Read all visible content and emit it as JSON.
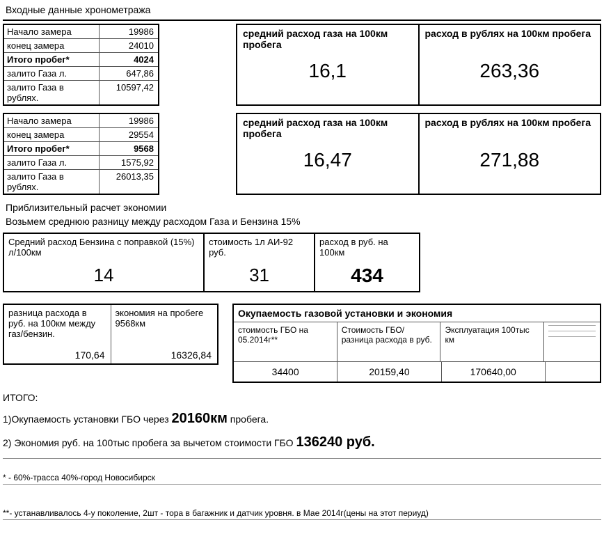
{
  "title": "Входные данные хронометража",
  "block1": {
    "rows": [
      {
        "label": "Начало замера",
        "val": "19986",
        "bold": false
      },
      {
        "label": "конец замера",
        "val": "24010",
        "bold": false
      },
      {
        "label": "Итого пробег*",
        "val": "4024",
        "bold": true
      },
      {
        "label": "залито Газа л.",
        "val": "647,86",
        "bold": false
      },
      {
        "label": "залито Газа в рублях.",
        "val": "10597,42",
        "bold": false
      }
    ]
  },
  "block2": {
    "rows": [
      {
        "label": "Начало замера",
        "val": "19986",
        "bold": false
      },
      {
        "label": "конец замера",
        "val": "29554",
        "bold": false
      },
      {
        "label": "Итого пробег*",
        "val": "9568",
        "bold": true
      },
      {
        "label": "залито Газа л.",
        "val": "1575,92",
        "bold": false
      },
      {
        "label": "залито Газа в рублях.",
        "val": "26013,35",
        "bold": false
      }
    ]
  },
  "right1": {
    "h1": "средний расход газа на 100км пробега",
    "v1": "16,1",
    "h2": "расход в рублях на 100км пробега",
    "v2": "263,36"
  },
  "right2": {
    "h1": "средний расход газа на 100км пробега",
    "v1": "16,47",
    "h2": "расход в рублях на 100км пробега",
    "v2": "271,88"
  },
  "est_title": "Приблизительный расчет экономии",
  "est_sub": "Возьмем среднюю разницу между расходом Газа и Бензина 15%",
  "petrol": {
    "h1": "Средний расход Бензина с поправкой (15%) л/100км",
    "v1": "14",
    "h2": "стоимость 1л АИ-92 руб.",
    "v2": "31",
    "h3": "расход в руб. на 100км",
    "v3": "434"
  },
  "diff": {
    "h1": "разница расхода в руб. на 100км между газ/бензин.",
    "v1": "170,64",
    "h2": "экономия на пробеге 9568км",
    "v2": "16326,84"
  },
  "payback": {
    "title": "Окупаемость газовой установки и экономия",
    "h1": "стоимость ГБО на 05.2014г**",
    "v1": "34400",
    "h2": "Стоимость ГБО/разница расхода в руб.",
    "v2": "20159,40",
    "h3": "Эксплуатация 100тыс км",
    "v3": "170640,00"
  },
  "summary": {
    "head": "ИТОГО:",
    "l1a": "1)Окупаемость установки ГБО через ",
    "l1b": "20160км",
    "l1c": " пробега.",
    "l2a": "2) Экономия руб. на 100тыс пробега за вычетом стоимости ГБО ",
    "l2b": "136240 руб."
  },
  "fn1": "* -   60%-трасса  40%-город Новосибирск",
  "fn2": "**- устанавливалось 4-у поколение, 2шт - тора в багажник и датчик уровня. в Мае 2014г(цены на этот периуд)"
}
